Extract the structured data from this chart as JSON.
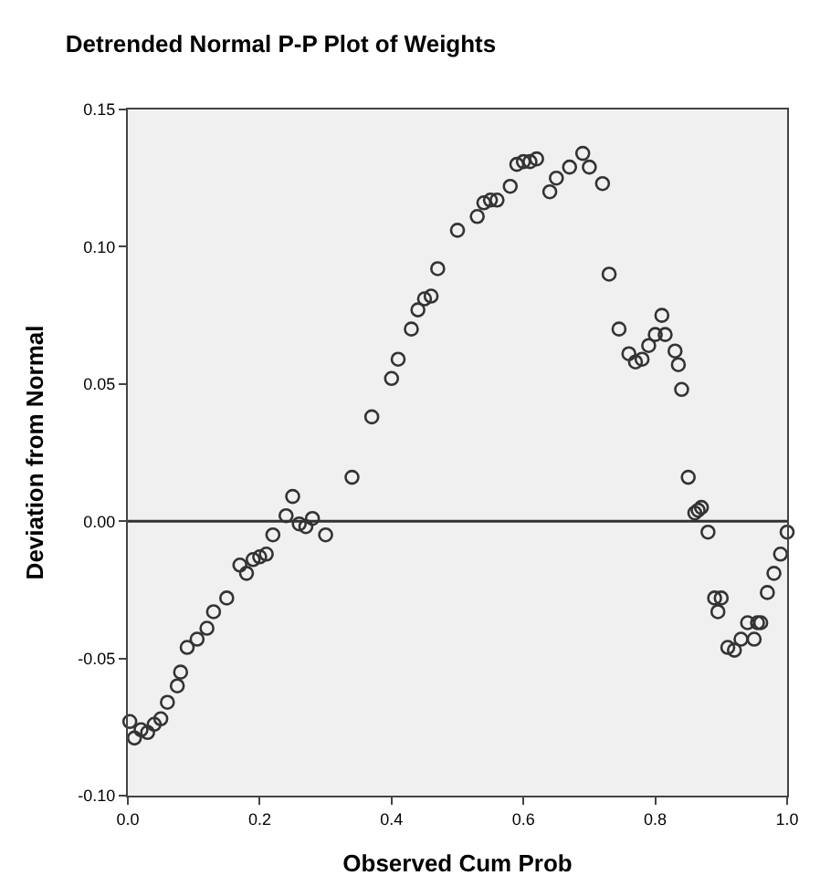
{
  "chart_data": {
    "type": "scatter",
    "title": "Detrended Normal P-P Plot of Weights",
    "xlabel": "Observed Cum Prob",
    "ylabel": "Deviation from Normal",
    "marker": "circle",
    "grid": false,
    "xlim": [
      0,
      1
    ],
    "xticks": [
      {
        "value": 0,
        "label": "0.0"
      },
      {
        "value": 0.2,
        "label": "0.2"
      },
      {
        "value": 0.4,
        "label": "0.4"
      },
      {
        "value": 0.6,
        "label": "0.6"
      },
      {
        "value": 0.8,
        "label": "0.8"
      },
      {
        "value": 1,
        "label": "1.0"
      }
    ],
    "ylim": [
      -0.1,
      0.15
    ],
    "yticks": [
      {
        "value": -0.1,
        "label": "-0.10"
      },
      {
        "value": -0.05,
        "label": "-0.05"
      },
      {
        "value": 0,
        "label": "0.00"
      },
      {
        "value": 0.05,
        "label": "0.05"
      },
      {
        "value": 0.1,
        "label": "0.10"
      },
      {
        "value": 0.15,
        "label": "0.15"
      }
    ],
    "ref_lines": [
      {
        "axis": "y",
        "value": 0,
        "color": "#333333"
      }
    ],
    "series": [
      {
        "color": "#333333",
        "x": [
          0.003,
          0.01,
          0.02,
          0.03,
          0.04,
          0.05,
          0.06,
          0.075,
          0.08,
          0.09,
          0.105,
          0.12,
          0.13,
          0.15,
          0.17,
          0.18,
          0.19,
          0.2,
          0.21,
          0.22,
          0.24,
          0.25,
          0.26,
          0.27,
          0.28,
          0.3,
          0.34,
          0.37,
          0.4,
          0.41,
          0.43,
          0.44,
          0.45,
          0.46,
          0.47,
          0.5,
          0.53,
          0.54,
          0.55,
          0.56,
          0.58,
          0.59,
          0.6,
          0.61,
          0.62,
          0.64,
          0.65,
          0.67,
          0.69,
          0.7,
          0.72,
          0.73,
          0.745,
          0.76,
          0.77,
          0.78,
          0.79,
          0.8,
          0.81,
          0.815,
          0.83,
          0.835,
          0.84,
          0.85,
          0.86,
          0.865,
          0.87,
          0.88,
          0.89,
          0.895,
          0.9,
          0.91,
          0.92,
          0.93,
          0.94,
          0.95,
          0.955,
          0.96,
          0.97,
          0.98,
          0.99,
          1.0
        ],
        "values": [
          -0.073,
          -0.079,
          -0.076,
          -0.077,
          -0.074,
          -0.072,
          -0.066,
          -0.06,
          -0.055,
          -0.046,
          -0.043,
          -0.039,
          -0.033,
          -0.028,
          -0.016,
          -0.019,
          -0.014,
          -0.013,
          -0.012,
          -0.005,
          0.002,
          0.009,
          -0.001,
          -0.002,
          0.001,
          -0.005,
          0.016,
          0.038,
          0.052,
          0.059,
          0.07,
          0.077,
          0.081,
          0.082,
          0.092,
          0.106,
          0.111,
          0.116,
          0.117,
          0.117,
          0.122,
          0.13,
          0.131,
          0.131,
          0.132,
          0.12,
          0.125,
          0.129,
          0.134,
          0.129,
          0.123,
          0.09,
          0.07,
          0.061,
          0.058,
          0.059,
          0.064,
          0.068,
          0.075,
          0.068,
          0.062,
          0.057,
          0.048,
          0.016,
          0.003,
          0.004,
          0.005,
          -0.004,
          -0.028,
          -0.033,
          -0.028,
          -0.046,
          -0.047,
          -0.043,
          -0.037,
          -0.043,
          -0.037,
          -0.037,
          -0.026,
          -0.019,
          -0.012,
          -0.004
        ]
      }
    ]
  }
}
